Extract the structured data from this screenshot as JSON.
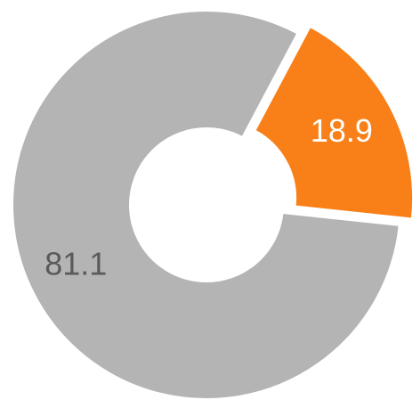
{
  "chart_data": {
    "type": "donut",
    "values": [
      18.9,
      81.1
    ],
    "colors": [
      "#f98019",
      "#b4b4b4"
    ],
    "label_colors": [
      "#ffffff",
      "#5a5a5a"
    ],
    "exploded": [
      true,
      false
    ]
  }
}
